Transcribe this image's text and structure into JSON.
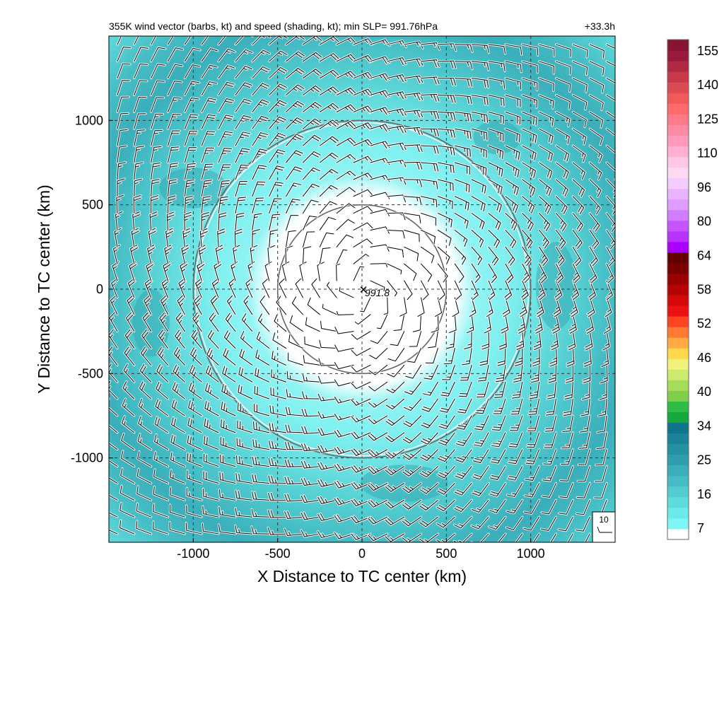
{
  "chart_data": {
    "type": "heatmap",
    "title": "355K wind vector (barbs, kt) and speed (shading, kt); min SLP= 991.76hPa",
    "lead_time": "+33.3h",
    "xlabel": "X Distance to TC center (km)",
    "ylabel": "Y Distance to TC center (km)",
    "xlim": [
      -1500,
      1500
    ],
    "ylim": [
      -1500,
      1500
    ],
    "xticks": [
      -1000,
      -500,
      0,
      500,
      1000
    ],
    "yticks": [
      -1000,
      -500,
      0,
      500,
      1000
    ],
    "xtick_labels": [
      "-1000",
      "-500",
      "0",
      "500",
      "1000"
    ],
    "ytick_labels": [
      "-1000",
      "-500",
      "0",
      "500",
      "1000"
    ],
    "grid": true,
    "center_marker": {
      "x": 0,
      "y": 0,
      "label": "991.8"
    },
    "range_rings_km": [
      500,
      1000
    ],
    "reference_barb": {
      "label": "10",
      "speed_kt": 10
    },
    "wind_field": {
      "calm_radius_km": 500,
      "ring_peak_radius_km": 1100,
      "speed_in_calm_kt": 5,
      "speed_peak_kt": 30,
      "speed_outer_kt": 14,
      "rotation": "cyclonic"
    },
    "colorbar": {
      "tick_labels": [
        "7",
        "16",
        "25",
        "34",
        "40",
        "46",
        "52",
        "58",
        "64",
        "80",
        "96",
        "110",
        "125",
        "140",
        "155"
      ],
      "colors": [
        "#ffffff",
        "#7ff5f5",
        "#6beaea",
        "#5edcdc",
        "#52cdd0",
        "#46bdc4",
        "#3aaeba",
        "#2f9fae",
        "#2592a4",
        "#1a8498",
        "#0e758c",
        "#16a83c",
        "#2ebc44",
        "#7fcf4a",
        "#a6dc5a",
        "#ccea6e",
        "#f2f27a",
        "#ffd84c",
        "#ffaa44",
        "#ff7a33",
        "#ff4422",
        "#ee1111",
        "#d40a0a",
        "#b60404",
        "#990000",
        "#7a0000",
        "#640000",
        "#aa00ff",
        "#b833ff",
        "#c655ff",
        "#d27cff",
        "#de9cff",
        "#e8b4ff",
        "#f4ccff",
        "#ffd8f4",
        "#ffc6e6",
        "#ffb0d2",
        "#ff99bb",
        "#ff8aa4",
        "#ff7a88",
        "#ff6a6a",
        "#f05a5a",
        "#dc4a52",
        "#c63a4a",
        "#b02a44",
        "#9a1a3c",
        "#8a1234"
      ]
    }
  }
}
